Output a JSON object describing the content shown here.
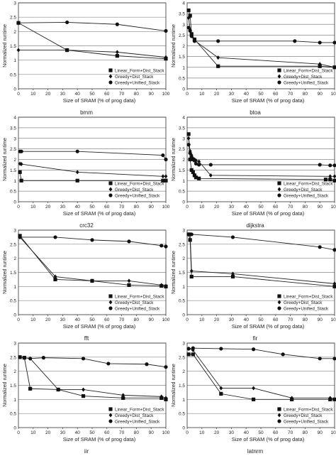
{
  "figure": {
    "ylabel": "Normalized runtime",
    "xlabel": "Size of SRAM (% of prog data)",
    "legend_labels": [
      "Linear_Form+Dist_Stack",
      "Greedy+Dist_Stack",
      "Greedy+Unified_Stack"
    ]
  },
  "chart_data": [
    {
      "type": "line",
      "title": "bmm",
      "ylim": [
        0,
        3
      ],
      "yticks": [
        0,
        0.5,
        1,
        1.5,
        2,
        2.5,
        3
      ],
      "xlim": [
        0,
        100
      ],
      "xticks": [
        0,
        10,
        20,
        30,
        40,
        50,
        60,
        70,
        80,
        90,
        100
      ],
      "series": [
        {
          "name": "Linear_Form+Dist_Stack",
          "x": [
            0,
            33,
            67,
            100
          ],
          "y": [
            2.3,
            1.35,
            1.15,
            1.05
          ]
        },
        {
          "name": "Greedy+Dist_Stack",
          "x": [
            0,
            33,
            67,
            100
          ],
          "y": [
            1.35,
            1.35,
            1.28,
            1.1
          ]
        },
        {
          "name": "Greedy+Unified_Stack",
          "x": [
            0,
            33,
            67,
            100
          ],
          "y": [
            2.3,
            2.32,
            2.25,
            2.02
          ]
        }
      ]
    },
    {
      "type": "line",
      "title": "btoa",
      "ylim": [
        0,
        4
      ],
      "yticks": [
        0,
        0.5,
        1,
        1.5,
        2,
        2.5,
        3,
        3.5,
        4
      ],
      "xlim": [
        0,
        100
      ],
      "xticks": [
        0,
        10,
        20,
        30,
        40,
        50,
        60,
        70,
        80,
        90,
        100
      ],
      "series": [
        {
          "name": "Linear_Form+Dist_Stack",
          "x": [
            1,
            2,
            3,
            5,
            21,
            90,
            100
          ],
          "y": [
            3.65,
            3.4,
            2.55,
            2.3,
            1.05,
            1.05,
            1.0
          ]
        },
        {
          "name": "Greedy+Dist_Stack",
          "x": [
            1,
            2,
            3,
            5,
            21,
            90,
            100
          ],
          "y": [
            3.3,
            2.75,
            2.45,
            2.25,
            1.45,
            1.15,
            1.0
          ]
        },
        {
          "name": "Greedy+Unified_Stack",
          "x": [
            1,
            2,
            3,
            5,
            21,
            73,
            90,
            100
          ],
          "y": [
            2.85,
            2.7,
            2.45,
            2.22,
            2.22,
            2.22,
            2.15,
            2.15
          ]
        }
      ]
    },
    {
      "type": "line",
      "title": "crc32",
      "ylim": [
        0,
        4
      ],
      "yticks": [
        0,
        0.5,
        1,
        1.5,
        2,
        2.5,
        3,
        3.5,
        4
      ],
      "xlim": [
        0,
        100
      ],
      "xticks": [
        0,
        10,
        20,
        30,
        40,
        50,
        60,
        70,
        80,
        90,
        100
      ],
      "series": [
        {
          "name": "Linear_Form+Dist_Stack",
          "x": [
            1,
            2,
            40,
            98,
            100
          ],
          "y": [
            1.4,
            1.0,
            1.0,
            1.0,
            1.0
          ]
        },
        {
          "name": "Greedy+Dist_Stack",
          "x": [
            1,
            2,
            40,
            98,
            100
          ],
          "y": [
            1.8,
            1.78,
            1.4,
            1.2,
            1.2
          ]
        },
        {
          "name": "Greedy+Unified_Stack",
          "x": [
            1,
            2,
            40,
            98,
            100
          ],
          "y": [
            2.38,
            2.38,
            2.38,
            2.2,
            2.0
          ]
        }
      ]
    },
    {
      "type": "line",
      "title": "dijkstra",
      "ylim": [
        0,
        4
      ],
      "yticks": [
        0,
        0.5,
        1,
        1.5,
        2,
        2.5,
        3,
        3.5,
        4
      ],
      "xlim": [
        0,
        100
      ],
      "xticks": [
        0,
        10,
        20,
        30,
        40,
        50,
        60,
        70,
        80,
        90,
        100
      ],
      "series": [
        {
          "name": "Linear_Form+Dist_Stack",
          "x": [
            1,
            2,
            3,
            4,
            5,
            6,
            8,
            94,
            97,
            100
          ],
          "y": [
            3.2,
            2.0,
            1.5,
            1.4,
            1.25,
            1.15,
            1.1,
            1.05,
            1.05,
            1.0
          ]
        },
        {
          "name": "Greedy+Dist_Stack",
          "x": [
            1,
            2,
            3,
            4,
            5,
            6,
            8,
            16,
            97,
            100
          ],
          "y": [
            3.0,
            2.4,
            2.2,
            2.05,
            2.0,
            1.95,
            1.9,
            1.25,
            1.2,
            1.2
          ]
        },
        {
          "name": "Greedy+Unified_Stack",
          "x": [
            1,
            2,
            3,
            4,
            5,
            6,
            8,
            16,
            90,
            97,
            100
          ],
          "y": [
            2.7,
            2.3,
            2.1,
            2.0,
            1.95,
            1.8,
            1.75,
            1.75,
            1.75,
            1.72,
            1.72
          ]
        }
      ]
    },
    {
      "type": "line",
      "title": "fft",
      "ylim": [
        0,
        3
      ],
      "yticks": [
        0,
        0.5,
        1,
        1.5,
        2,
        2.5,
        3
      ],
      "xlim": [
        0,
        100
      ],
      "xticks": [
        0,
        10,
        20,
        30,
        40,
        50,
        60,
        70,
        80,
        90,
        100
      ],
      "series": [
        {
          "name": "Linear_Form+Dist_Stack",
          "x": [
            1,
            25,
            50,
            75,
            97,
            100
          ],
          "y": [
            2.8,
            1.25,
            1.2,
            1.05,
            1.02,
            1.0
          ]
        },
        {
          "name": "Greedy+Dist_Stack",
          "x": [
            1,
            25,
            50,
            75,
            97,
            100
          ],
          "y": [
            2.75,
            1.35,
            1.2,
            1.2,
            1.05,
            1.02
          ]
        },
        {
          "name": "Greedy+Unified_Stack",
          "x": [
            1,
            25,
            50,
            75,
            97,
            100
          ],
          "y": [
            2.75,
            2.75,
            2.65,
            2.6,
            2.45,
            2.42
          ]
        }
      ]
    },
    {
      "type": "line",
      "title": "fir",
      "ylim": [
        0,
        3
      ],
      "yticks": [
        0,
        0.5,
        1,
        1.5,
        2,
        2.5,
        3
      ],
      "xlim": [
        0,
        100
      ],
      "xticks": [
        0,
        10,
        20,
        30,
        40,
        50,
        60,
        70,
        80,
        90,
        100
      ],
      "series": [
        {
          "name": "Linear_Form+Dist_Stack",
          "x": [
            1,
            2,
            3,
            31,
            100
          ],
          "y": [
            2.85,
            2.65,
            1.35,
            1.35,
            1.0
          ]
        },
        {
          "name": "Greedy+Dist_Stack",
          "x": [
            1,
            2,
            3,
            31,
            100
          ],
          "y": [
            2.85,
            2.85,
            1.55,
            1.45,
            1.1
          ]
        },
        {
          "name": "Greedy+Unified_Stack",
          "x": [
            1,
            2,
            3,
            31,
            90,
            100
          ],
          "y": [
            2.85,
            2.85,
            2.85,
            2.75,
            2.4,
            2.3
          ]
        }
      ]
    },
    {
      "type": "line",
      "title": "iir",
      "ylim": [
        0,
        3
      ],
      "yticks": [
        0,
        0.5,
        1,
        1.5,
        2,
        2.5,
        3
      ],
      "xlim": [
        0,
        100
      ],
      "xticks": [
        0,
        10,
        20,
        30,
        40,
        50,
        60,
        70,
        80,
        90,
        100
      ],
      "series": [
        {
          "name": "Linear_Form+Dist_Stack",
          "x": [
            1,
            4,
            8,
            27,
            44,
            71,
            97,
            100
          ],
          "y": [
            2.5,
            2.48,
            1.38,
            1.35,
            1.12,
            1.05,
            1.05,
            1.0
          ]
        },
        {
          "name": "Greedy+Dist_Stack",
          "x": [
            1,
            4,
            8,
            27,
            44,
            71,
            97,
            100
          ],
          "y": [
            2.5,
            2.48,
            2.45,
            1.35,
            1.35,
            1.15,
            1.1,
            1.05
          ]
        },
        {
          "name": "Greedy+Unified_Stack",
          "x": [
            1,
            4,
            8,
            17,
            44,
            61,
            87,
            100
          ],
          "y": [
            2.5,
            2.48,
            2.45,
            2.48,
            2.45,
            2.27,
            2.25,
            2.15
          ]
        }
      ]
    },
    {
      "type": "line",
      "title": "latnrm",
      "ylim": [
        0,
        3
      ],
      "yticks": [
        0,
        0.5,
        1,
        1.5,
        2,
        2.5,
        3
      ],
      "xlim": [
        0,
        100
      ],
      "xticks": [
        0,
        10,
        20,
        30,
        40,
        50,
        60,
        70,
        80,
        90,
        100
      ],
      "series": [
        {
          "name": "Linear_Form+Dist_Stack",
          "x": [
            1,
            4,
            23,
            45,
            71,
            97,
            100
          ],
          "y": [
            2.6,
            2.6,
            1.2,
            1.0,
            1.0,
            1.0,
            1.0
          ]
        },
        {
          "name": "Greedy+Dist_Stack",
          "x": [
            1,
            4,
            23,
            45,
            71,
            97,
            100
          ],
          "y": [
            2.8,
            2.75,
            1.4,
            1.4,
            1.05,
            1.05,
            1.0
          ]
        },
        {
          "name": "Greedy+Unified_Stack",
          "x": [
            1,
            4,
            23,
            45,
            65,
            90,
            100
          ],
          "y": [
            2.8,
            2.82,
            2.8,
            2.78,
            2.6,
            2.45,
            2.45
          ]
        }
      ]
    }
  ]
}
